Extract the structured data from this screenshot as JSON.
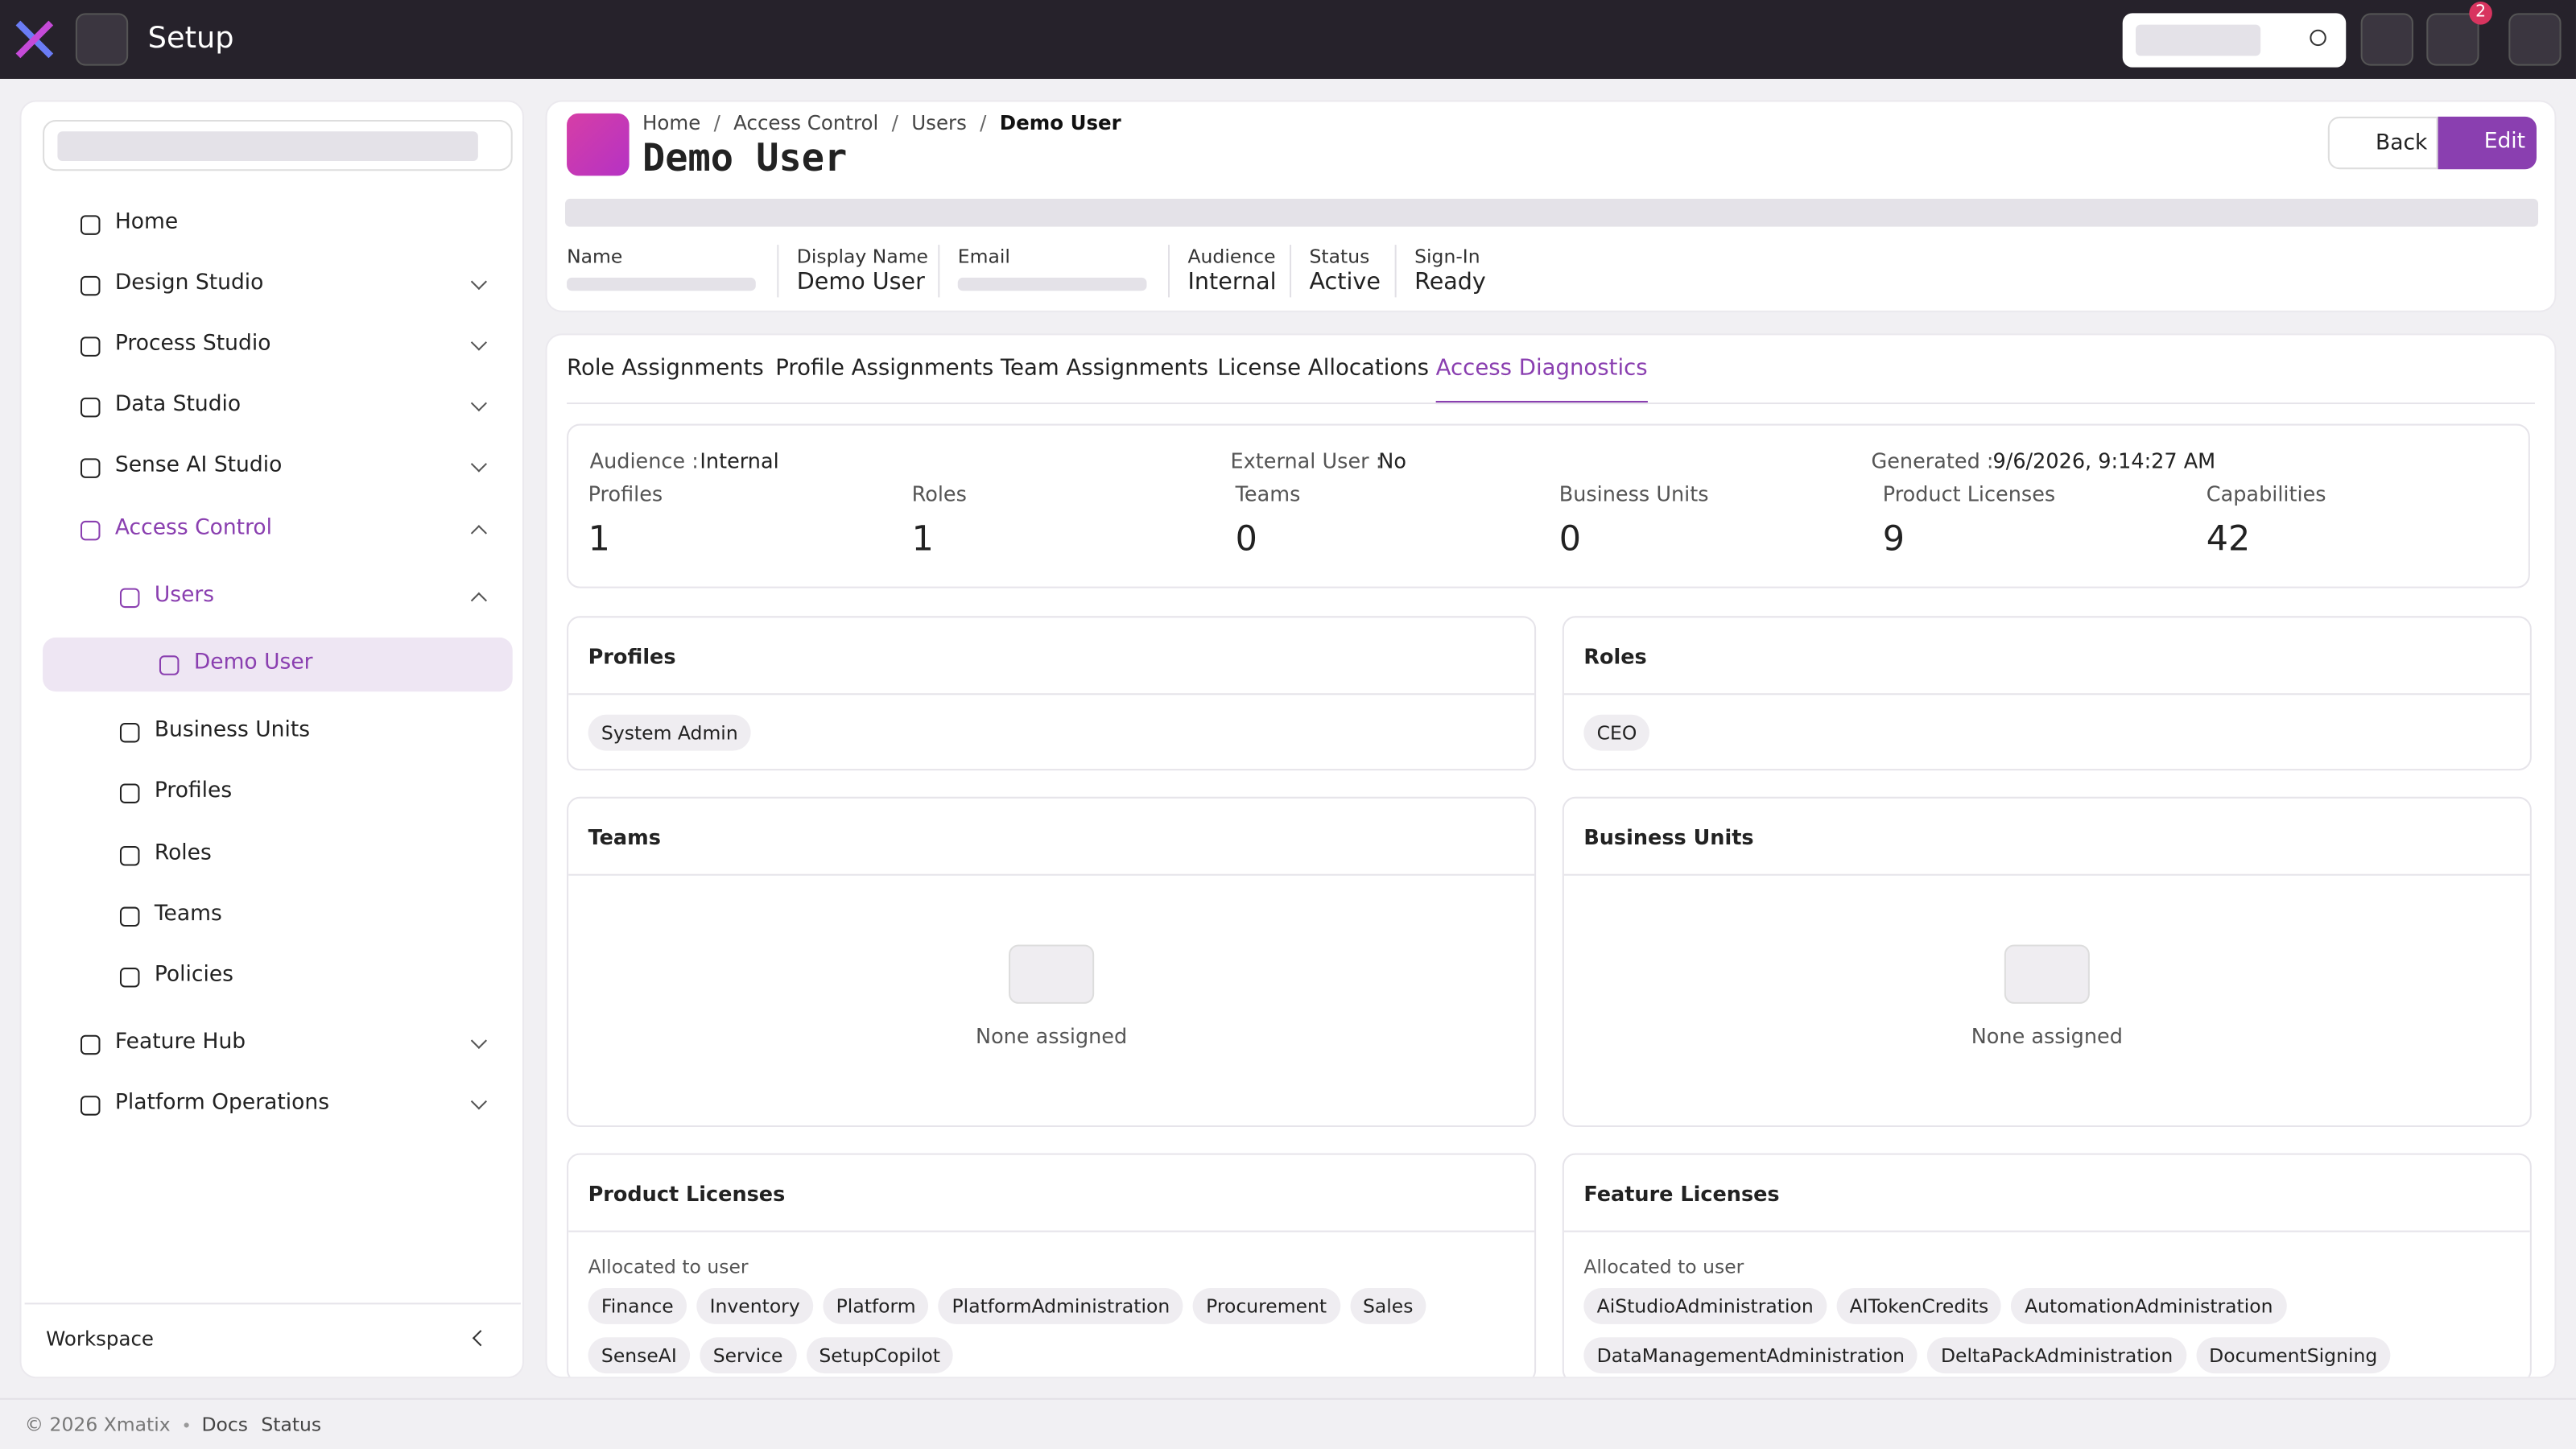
{
  "topbar": {
    "title": "Setup",
    "notification_count": "2"
  },
  "sidebar": {
    "items": [
      {
        "label": "Home",
        "level": 0
      },
      {
        "label": "Design Studio",
        "level": 0,
        "expanded": false
      },
      {
        "label": "Process Studio",
        "level": 0,
        "expanded": false
      },
      {
        "label": "Data Studio",
        "level": 0,
        "expanded": false
      },
      {
        "label": "Sense AI Studio",
        "level": 0,
        "expanded": false
      },
      {
        "label": "Access Control",
        "level": 0,
        "expanded": true
      },
      {
        "label": "Users",
        "level": 1,
        "expanded": true
      },
      {
        "label": "Demo User",
        "level": 2,
        "active": true
      },
      {
        "label": "Business Units",
        "level": 1
      },
      {
        "label": "Profiles",
        "level": 1
      },
      {
        "label": "Roles",
        "level": 1
      },
      {
        "label": "Teams",
        "level": 1
      },
      {
        "label": "Policies",
        "level": 1
      },
      {
        "label": "Feature Hub",
        "level": 0,
        "expanded": false
      },
      {
        "label": "Platform Operations",
        "level": 0,
        "expanded": false
      }
    ],
    "footer": "Workspace"
  },
  "header": {
    "breadcrumbs": [
      "Home",
      "Access Control",
      "Users",
      "Demo User"
    ],
    "title": "Demo User",
    "actions": [
      "Back",
      "Edit"
    ],
    "fields": [
      {
        "label": "Name"
      },
      {
        "label": "Display Name",
        "value": "Demo User"
      },
      {
        "label": "Email"
      },
      {
        "label": "Audience",
        "value": "Internal"
      },
      {
        "label": "Status",
        "value": "Active"
      },
      {
        "label": "Sign-In",
        "value": "Ready"
      }
    ]
  },
  "tabs": {
    "items": [
      "Role Assignments",
      "Profile Assignments",
      "Team Assignments",
      "License Allocations",
      "Access Diagnostics"
    ],
    "active": 4
  },
  "diagnostics": {
    "facts": [
      {
        "label": "Audience :",
        "value": "Internal"
      },
      {
        "label": "External User :",
        "value": "No"
      },
      {
        "label": "Generated :",
        "value": "9/6/2026, 9:14:27 AM"
      }
    ],
    "stats": [
      {
        "label": "Profiles",
        "value": 1
      },
      {
        "label": "Roles",
        "value": 1
      },
      {
        "label": "Teams",
        "value": 0
      },
      {
        "label": "Business Units",
        "value": 0
      },
      {
        "label": "Product Licenses",
        "value": 9
      },
      {
        "label": "Capabilities",
        "value": 42
      }
    ]
  },
  "cards": [
    {
      "title": "Profiles",
      "chips": [
        "System Admin"
      ]
    },
    {
      "title": "Roles",
      "chips": [
        "CEO"
      ]
    },
    {
      "title": "Teams",
      "empty": "None assigned"
    },
    {
      "title": "Business Units",
      "empty": "None assigned"
    },
    {
      "title": "Product Licenses",
      "subtitle": "Allocated to user",
      "chips": [
        "Finance",
        "Inventory",
        "Platform",
        "PlatformAdministration",
        "Procurement",
        "Sales",
        "SenseAI",
        "Service",
        "SetupCopilot"
      ]
    },
    {
      "title": "Feature Licenses",
      "subtitle": "Allocated to user",
      "chips": [
        "AiStudioAdministration",
        "AITokenCredits",
        "AutomationAdministration",
        "DataManagementAdministration",
        "DeltaPackAdministration",
        "DocumentSigning"
      ]
    }
  ],
  "footer": {
    "copyright": "© 2026 Xmatix",
    "links": [
      "Docs",
      "Status"
    ]
  }
}
